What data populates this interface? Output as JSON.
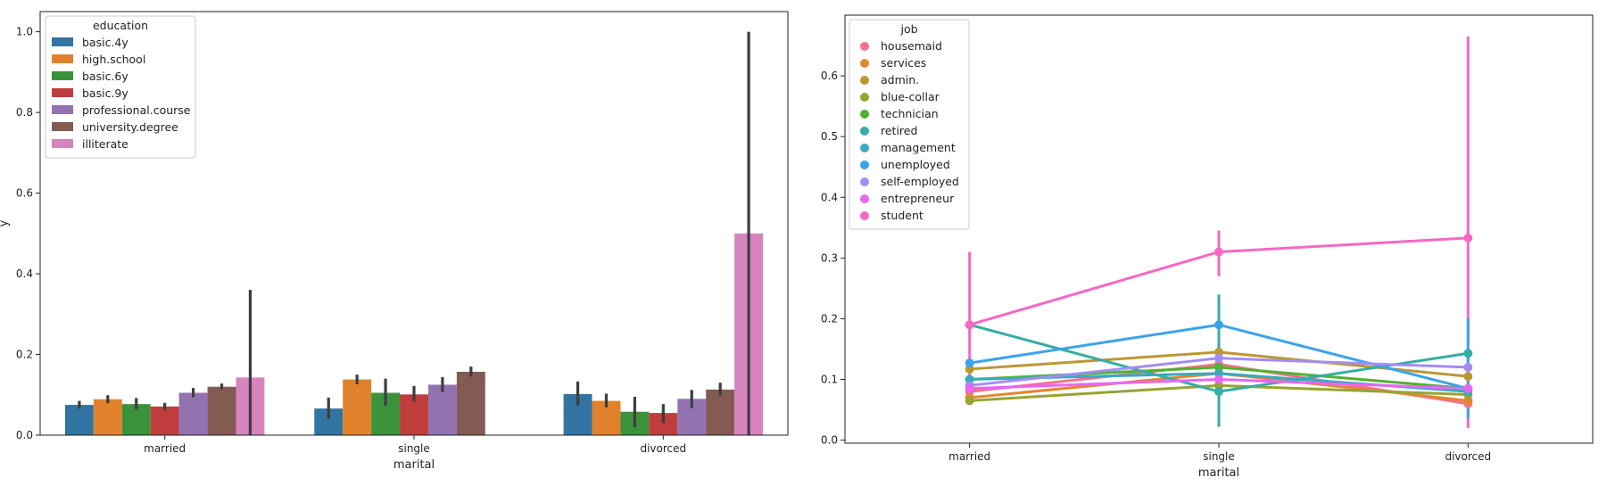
{
  "chart_data": [
    {
      "type": "bar",
      "xlabel": "marital",
      "ylabel": "y",
      "ylim": [
        0,
        1.05
      ],
      "yticks": [
        "0.0",
        "0.2",
        "0.4",
        "0.6",
        "0.8",
        "1.0"
      ],
      "categories": [
        "married",
        "single",
        "divorced"
      ],
      "legend": {
        "title": "education",
        "placement": "upper-left"
      },
      "series": [
        {
          "name": "basic.4y",
          "color": "#3274a1",
          "values": [
            0.075,
            0.066,
            0.102
          ],
          "err_low": [
            0.065,
            0.04,
            0.073
          ],
          "err_high": [
            0.085,
            0.093,
            0.133
          ]
        },
        {
          "name": "high.school",
          "color": "#e1812c",
          "values": [
            0.089,
            0.138,
            0.085
          ],
          "err_low": [
            0.079,
            0.126,
            0.069
          ],
          "err_high": [
            0.099,
            0.15,
            0.103
          ]
        },
        {
          "name": "basic.6y",
          "color": "#3a923a",
          "values": [
            0.077,
            0.105,
            0.058
          ],
          "err_low": [
            0.063,
            0.073,
            0.02
          ],
          "err_high": [
            0.092,
            0.14,
            0.095
          ]
        },
        {
          "name": "basic.9y",
          "color": "#c03d3e",
          "values": [
            0.071,
            0.101,
            0.055
          ],
          "err_low": [
            0.062,
            0.083,
            0.03
          ],
          "err_high": [
            0.08,
            0.122,
            0.077
          ]
        },
        {
          "name": "professional.course",
          "color": "#9372b2",
          "values": [
            0.105,
            0.125,
            0.09
          ],
          "err_low": [
            0.094,
            0.107,
            0.067
          ],
          "err_high": [
            0.117,
            0.144,
            0.112
          ]
        },
        {
          "name": "university.degree",
          "color": "#845b53",
          "values": [
            0.12,
            0.157,
            0.113
          ],
          "err_low": [
            0.113,
            0.145,
            0.098
          ],
          "err_high": [
            0.128,
            0.17,
            0.13
          ]
        },
        {
          "name": "illiterate",
          "color": "#d684bd",
          "values": [
            0.143,
            null,
            0.5
          ],
          "err_low": [
            0.0,
            null,
            0.0
          ],
          "err_high": [
            0.36,
            null,
            1.0
          ]
        }
      ]
    },
    {
      "type": "line",
      "xlabel": "marital",
      "ylabel": "",
      "ylim": [
        -0.005,
        0.7
      ],
      "yticks": [
        "0.0",
        "0.1",
        "0.2",
        "0.3",
        "0.4",
        "0.5",
        "0.6"
      ],
      "categories": [
        "married",
        "single",
        "divorced"
      ],
      "legend": {
        "title": "job",
        "placement": "upper-left"
      },
      "series": [
        {
          "name": "housemaid",
          "color": "#f77189",
          "values": [
            0.08,
            0.125,
            0.06
          ]
        },
        {
          "name": "services",
          "color": "#e18732",
          "values": [
            0.07,
            0.11,
            0.065
          ]
        },
        {
          "name": "admin.",
          "color": "#bb9832",
          "values": [
            0.117,
            0.145,
            0.105
          ]
        },
        {
          "name": "blue-collar",
          "color": "#97a431",
          "values": [
            0.065,
            0.09,
            0.075
          ]
        },
        {
          "name": "technician",
          "color": "#50b131",
          "values": [
            0.1,
            0.12,
            0.085
          ]
        },
        {
          "name": "retired",
          "color": "#36ada4",
          "values": [
            0.19,
            0.08,
            0.143
          ]
        },
        {
          "name": "management",
          "color": "#38aabf",
          "values": [
            0.1,
            0.11,
            0.08
          ]
        },
        {
          "name": "unemployed",
          "color": "#3ba3ec",
          "values": [
            0.127,
            0.19,
            0.085
          ]
        },
        {
          "name": "self-employed",
          "color": "#a48cf4",
          "values": [
            0.09,
            0.135,
            0.12
          ]
        },
        {
          "name": "entrepreneur",
          "color": "#e866f4",
          "values": [
            0.085,
            0.1,
            0.085
          ]
        },
        {
          "name": "student",
          "color": "#f668c2",
          "values": [
            0.19,
            0.31,
            0.333
          ],
          "err_low": [
            0.075,
            0.27,
            0.02
          ],
          "err_high": [
            0.31,
            0.345,
            0.665
          ]
        }
      ],
      "extra_errors": [
        {
          "category": 1,
          "color": "#36ada4",
          "low": 0.022,
          "high": 0.24
        },
        {
          "category": 2,
          "color": "#3ba3ec",
          "low": 0.035,
          "high": 0.2
        }
      ]
    }
  ]
}
